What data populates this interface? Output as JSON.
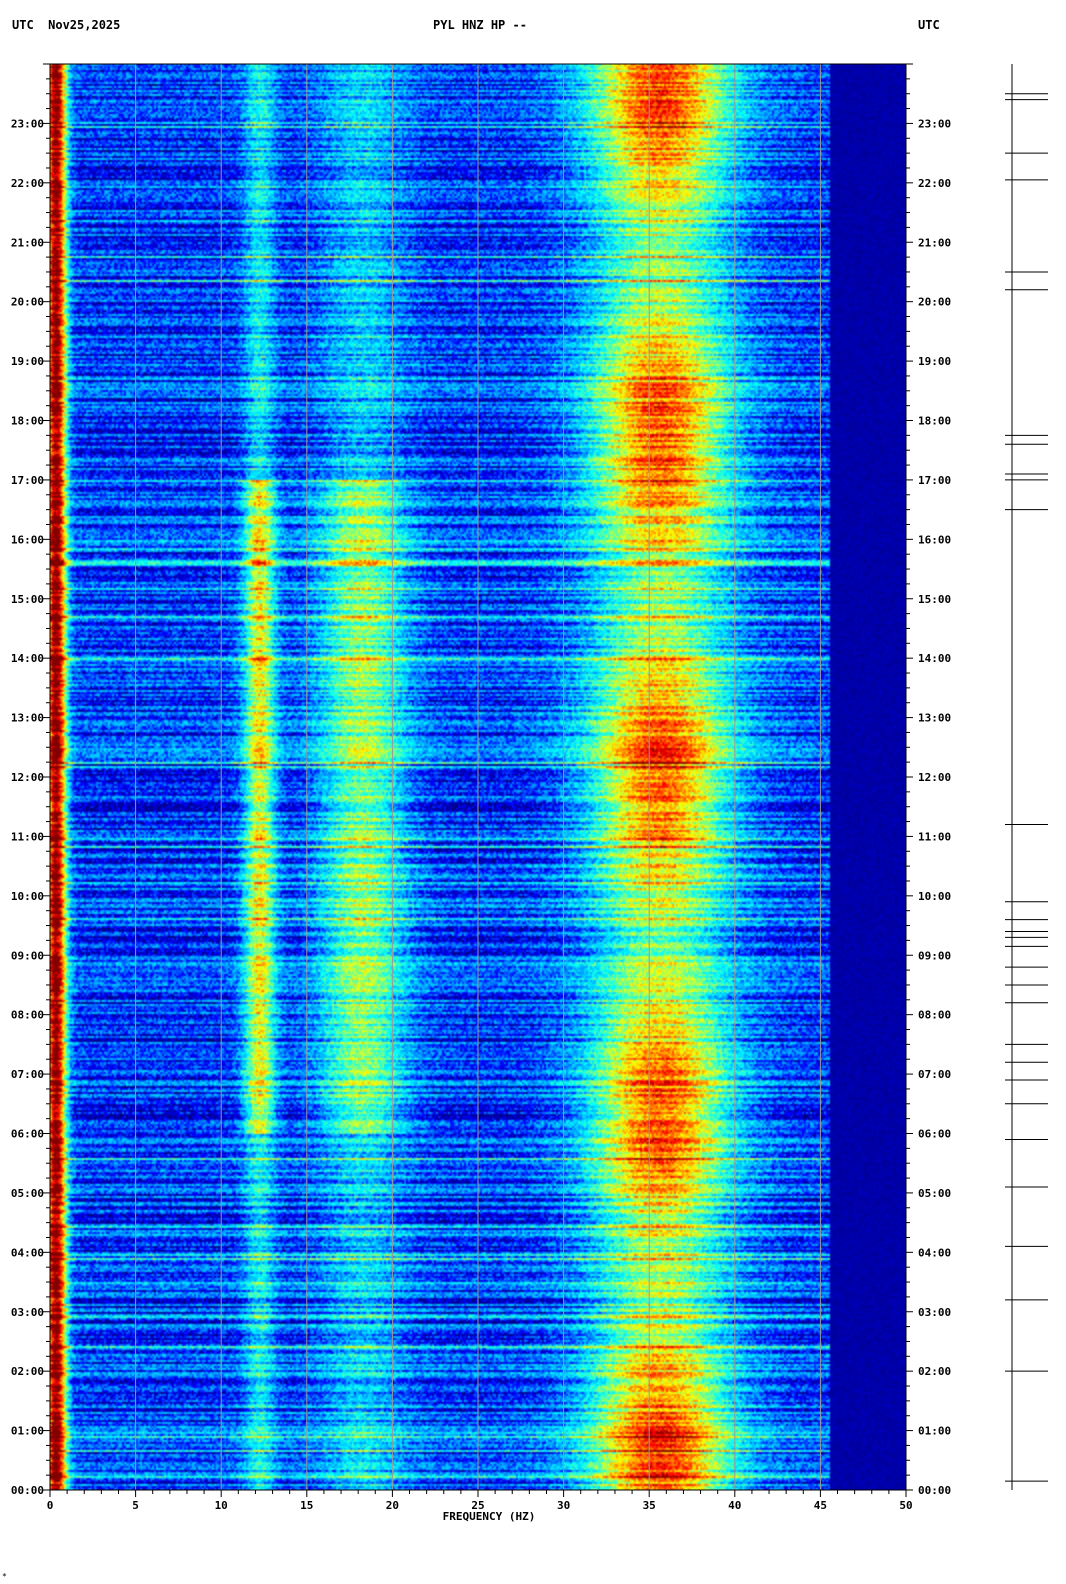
{
  "header": {
    "left": "UTC  Nov25,2025",
    "center": "PYL HNZ HP --",
    "right": "UTC"
  },
  "corner_mark": "*",
  "chart_data": {
    "type": "heatmap",
    "title": "PYL HNZ HP --",
    "date": "Nov25,2025",
    "timezone": "UTC",
    "xlabel": "FREQUENCY (HZ)",
    "xlim": [
      0,
      50
    ],
    "x_ticks": [
      0,
      5,
      10,
      15,
      20,
      25,
      30,
      35,
      40,
      45,
      50
    ],
    "x_tick_labels": [
      "0",
      "5",
      "10",
      "15",
      "20",
      "25",
      "30",
      "35",
      "40",
      "45",
      "50"
    ],
    "ylim_hours": [
      0,
      24
    ],
    "y_ticks": [
      "00:00",
      "01:00",
      "02:00",
      "03:00",
      "04:00",
      "05:00",
      "06:00",
      "07:00",
      "08:00",
      "09:00",
      "10:00",
      "11:00",
      "12:00",
      "13:00",
      "14:00",
      "15:00",
      "16:00",
      "17:00",
      "18:00",
      "19:00",
      "20:00",
      "21:00",
      "22:00",
      "23:00"
    ],
    "y_tick_hours": [
      0,
      1,
      2,
      3,
      4,
      5,
      6,
      7,
      8,
      9,
      10,
      11,
      12,
      13,
      14,
      15,
      16,
      17,
      18,
      19,
      20,
      21,
      22,
      23
    ],
    "colormap": [
      "#000080",
      "#0000ff",
      "#00a0ff",
      "#00ffff",
      "#80ff80",
      "#ffff00",
      "#ff8000",
      "#ff0000",
      "#800000"
    ],
    "gridlines": true,
    "energy_bands": [
      {
        "center_hz": 0.3,
        "strength": 0.85,
        "width_hz": 0.6
      },
      {
        "center_hz": 12.2,
        "strength": 0.45,
        "width_hz": 0.9
      },
      {
        "center_hz": 18.2,
        "strength": 0.35,
        "width_hz": 2.5
      },
      {
        "center_hz": 35.6,
        "strength": 0.65,
        "width_hz": 4.0
      }
    ],
    "cutoff_hz": 45.5,
    "event_marks_hours": [
      0.15,
      2.0,
      3.2,
      4.1,
      5.1,
      5.9,
      6.5,
      6.9,
      7.2,
      7.5,
      8.2,
      8.5,
      8.8,
      9.15,
      9.3,
      9.4,
      9.6,
      9.9,
      11.2,
      16.5,
      17.0,
      17.1,
      17.6,
      17.75,
      20.2,
      20.5,
      22.05,
      22.5,
      23.4,
      23.5
    ]
  }
}
